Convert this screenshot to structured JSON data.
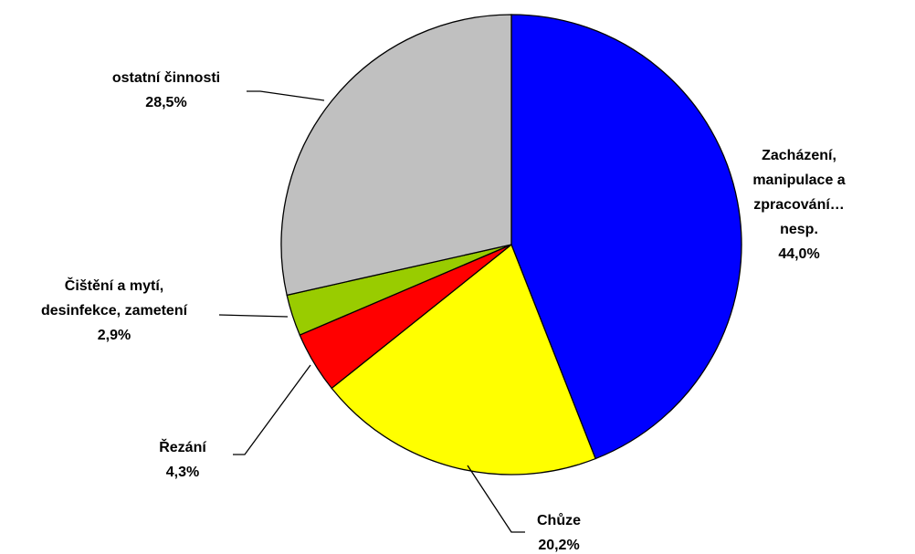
{
  "chart_data": {
    "type": "pie",
    "categories": [
      "Zacházení,\nmanipulace a\nzpracování… nesp.",
      "Chůze",
      "Řezání",
      "Čištění a mytí,\ndesinfekce, zametení",
      "ostatní činnosti"
    ],
    "values": [
      44.0,
      20.2,
      4.3,
      2.9,
      28.5
    ],
    "value_labels": [
      "44,0%",
      "20,2%",
      "4,3%",
      "2,9%",
      "28,5%"
    ],
    "colors": [
      "#0000ff",
      "#ffff00",
      "#ff0000",
      "#99cc00",
      "#c0c0c0"
    ]
  }
}
